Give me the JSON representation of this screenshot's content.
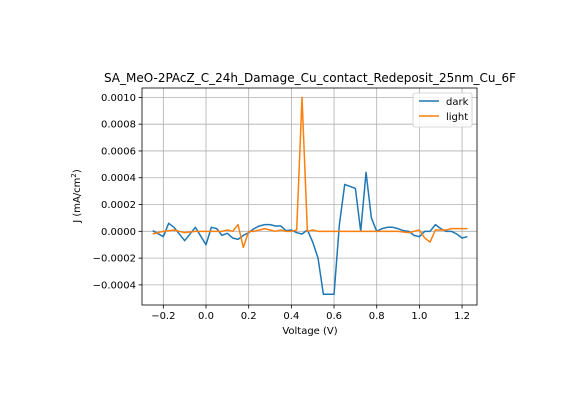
{
  "chart_data": {
    "type": "line",
    "title": "SA_MeO-2PAcZ_C_24h_Damage_Cu_contact_Redeposit_25nm_Cu_6F",
    "xlabel": "Voltage (V)",
    "ylabel_main": "J (mA/cm",
    "ylabel_sup": "2",
    "ylabel_end": ")",
    "xlim": [
      -0.3,
      1.27
    ],
    "ylim": [
      -0.00055,
      0.00107
    ],
    "x_ticks": [
      -0.2,
      0.0,
      0.2,
      0.4,
      0.6,
      0.8,
      1.0,
      1.2
    ],
    "x_tick_labels": [
      "−0.2",
      "0.0",
      "0.2",
      "0.4",
      "0.6",
      "0.8",
      "1.0",
      "1.2"
    ],
    "y_ticks": [
      -0.0004,
      -0.0002,
      0.0,
      0.0002,
      0.0004,
      0.0006,
      0.0008,
      0.001
    ],
    "y_tick_labels": [
      "−0.0004",
      "−0.0002",
      "0.0000",
      "0.0002",
      "0.0004",
      "0.0006",
      "0.0008",
      "0.0010"
    ],
    "grid": true,
    "legend_position": "top-right",
    "series": [
      {
        "name": "dark",
        "color": "#1f77b4",
        "x": [
          -0.25,
          -0.2,
          -0.175,
          -0.15,
          -0.1,
          -0.05,
          0.0,
          0.025,
          0.05,
          0.075,
          0.1,
          0.125,
          0.15,
          0.175,
          0.2,
          0.225,
          0.25,
          0.275,
          0.3,
          0.325,
          0.35,
          0.375,
          0.4,
          0.425,
          0.45,
          0.475,
          0.5,
          0.525,
          0.55,
          0.6,
          0.625,
          0.65,
          0.7,
          0.725,
          0.75,
          0.775,
          0.8,
          0.825,
          0.85,
          0.875,
          0.9,
          0.925,
          0.95,
          0.975,
          1.0,
          1.025,
          1.05,
          1.075,
          1.1,
          1.125,
          1.15,
          1.175,
          1.2,
          1.225
        ],
        "y": [
          5e-06,
          -4e-05,
          6e-05,
          3e-05,
          -7e-05,
          3e-05,
          -0.0001,
          3e-05,
          2e-05,
          -3e-05,
          -1.5e-05,
          -5e-05,
          -6e-05,
          -3e-05,
          -1e-05,
          2e-05,
          4e-05,
          5e-05,
          5e-05,
          4e-05,
          4e-05,
          5e-06,
          1e-05,
          -1e-05,
          -2e-05,
          1e-05,
          -8e-05,
          -0.0002,
          -0.00047,
          -0.00047,
          5e-05,
          0.00035,
          0.00032,
          0.0,
          0.00044,
          0.0001,
          0.0,
          2e-05,
          3e-05,
          3e-05,
          2e-05,
          5e-06,
          0.0,
          -3e-05,
          -4e-05,
          0.0,
          0.0,
          5e-05,
          2e-05,
          0.0,
          0.0,
          -2e-05,
          -5e-05,
          -4e-05
        ]
      },
      {
        "name": "light",
        "color": "#ff7f0e",
        "x": [
          -0.25,
          -0.2,
          -0.15,
          -0.1,
          -0.05,
          0.0,
          0.025,
          0.05,
          0.075,
          0.1,
          0.125,
          0.15,
          0.175,
          0.2,
          0.225,
          0.25,
          0.275,
          0.3,
          0.325,
          0.35,
          0.375,
          0.4,
          0.425,
          0.45,
          0.475,
          0.5,
          0.525,
          0.55,
          0.6,
          0.65,
          0.7,
          0.75,
          0.8,
          0.85,
          0.9,
          0.95,
          1.0,
          1.025,
          1.05,
          1.075,
          1.1,
          1.125,
          1.15,
          1.175,
          1.2,
          1.225
        ],
        "y": [
          -2e-05,
          0.0,
          1e-05,
          -1e-05,
          0.0,
          0.0,
          0.0,
          0.0,
          0.0,
          1e-05,
          0.0,
          5e-05,
          -0.00012,
          0.0,
          0.0,
          1e-05,
          2e-05,
          1e-05,
          0.0,
          1e-05,
          0.0,
          0.0,
          1e-05,
          0.001,
          0.0,
          1e-05,
          0.0,
          0.0,
          0.0,
          0.0,
          0.0,
          0.0,
          0.0,
          0.0,
          0.0,
          -1e-05,
          1e-05,
          -5e-05,
          -8e-05,
          1e-05,
          1e-05,
          1e-05,
          2e-05,
          2e-05,
          2e-05,
          2e-05
        ]
      }
    ]
  }
}
